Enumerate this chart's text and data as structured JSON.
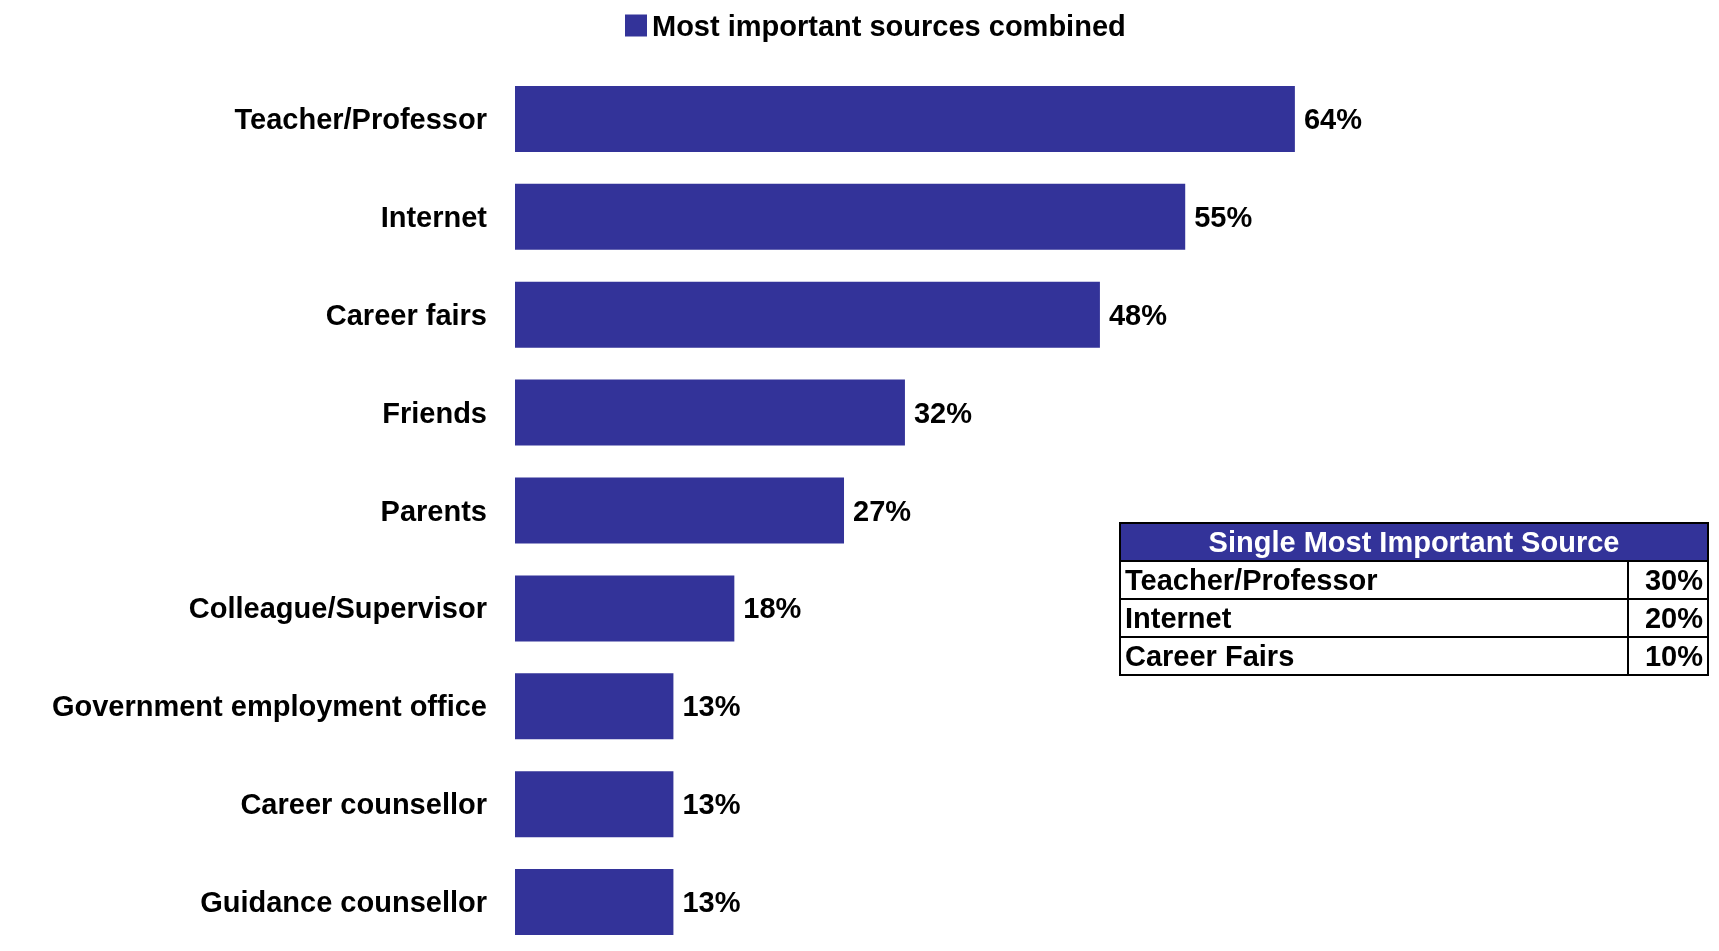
{
  "chart_data": [
    {
      "type": "bar",
      "orientation": "horizontal",
      "legend": "top",
      "categories": [
        "Teacher/Professor",
        "Internet",
        "Career fairs",
        "Friends",
        "Parents",
        "Colleague/Supervisor",
        "Government employment office",
        "Career counsellor",
        "Guidance counsellor"
      ],
      "series": [
        {
          "name": "Most important sources combined",
          "color": "#333399",
          "values": [
            64,
            55,
            48,
            32,
            27,
            18,
            13,
            13,
            13
          ],
          "value_labels": [
            "64%",
            "55%",
            "48%",
            "32%",
            "27%",
            "18%",
            "13%",
            "13%",
            "13%"
          ]
        }
      ]
    },
    {
      "type": "other",
      "title": "Single Most Important Source",
      "categories": [
        "Teacher/Professor",
        "Internet",
        "Career Fairs"
      ],
      "value_labels": [
        "30%",
        "20%",
        "10%"
      ]
    }
  ]
}
